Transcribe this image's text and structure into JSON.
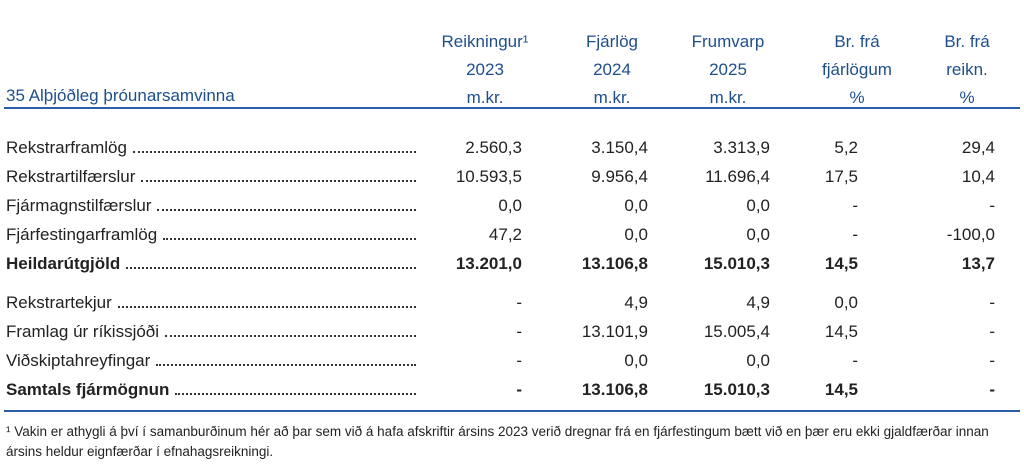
{
  "table": {
    "title": "35 Alþjóðleg þróunarsamvinna",
    "columns": [
      [
        "Reikningur¹",
        "2023",
        "m.kr."
      ],
      [
        "Fjárlög",
        "2024",
        "m.kr."
      ],
      [
        "Frumvarp",
        "2025",
        "m.kr."
      ],
      [
        "Br. frá",
        "fjárlögum",
        "%"
      ],
      [
        "Br. frá",
        "reikn.",
        "%"
      ]
    ],
    "groups": [
      [
        {
          "label": "Rekstrarframlög",
          "values": [
            "2.560,3",
            "3.150,4",
            "3.313,9",
            "5,2",
            "29,4"
          ]
        },
        {
          "label": "Rekstrartilfærslur",
          "values": [
            "10.593,5",
            "9.956,4",
            "11.696,4",
            "17,5",
            "10,4"
          ]
        },
        {
          "label": "Fjármagnstilfærslur",
          "values": [
            "0,0",
            "0,0",
            "0,0",
            "-",
            "-"
          ]
        },
        {
          "label": "Fjárfestingarframlög",
          "values": [
            "47,2",
            "0,0",
            "0,0",
            "-",
            "-100,0"
          ]
        },
        {
          "label": "Heildarútgjöld",
          "values": [
            "13.201,0",
            "13.106,8",
            "15.010,3",
            "14,5",
            "13,7"
          ],
          "total": true
        }
      ],
      [
        {
          "label": "Rekstrartekjur",
          "values": [
            "-",
            "4,9",
            "4,9",
            "0,0",
            "-"
          ]
        },
        {
          "label": "Framlag úr ríkissjóði",
          "values": [
            "-",
            "13.101,9",
            "15.005,4",
            "14,5",
            "-"
          ]
        },
        {
          "label": "Viðskiptahreyfingar",
          "values": [
            "-",
            "0,0",
            "0,0",
            "-",
            "-"
          ]
        },
        {
          "label": "Samtals fjármögnun",
          "values": [
            "-",
            "13.106,8",
            "15.010,3",
            "14,5",
            "-"
          ],
          "total": true
        }
      ]
    ]
  },
  "footnote": "¹ Vakin er athygli á því í samanburðinum hér að þar sem við á hafa afskriftir ársins 2023 verið dregnar frá en fjárfestingum bætt við en þær eru ekki gjaldfærðar innan ársins heldur eignfærðar í efnahagsreikningi."
}
